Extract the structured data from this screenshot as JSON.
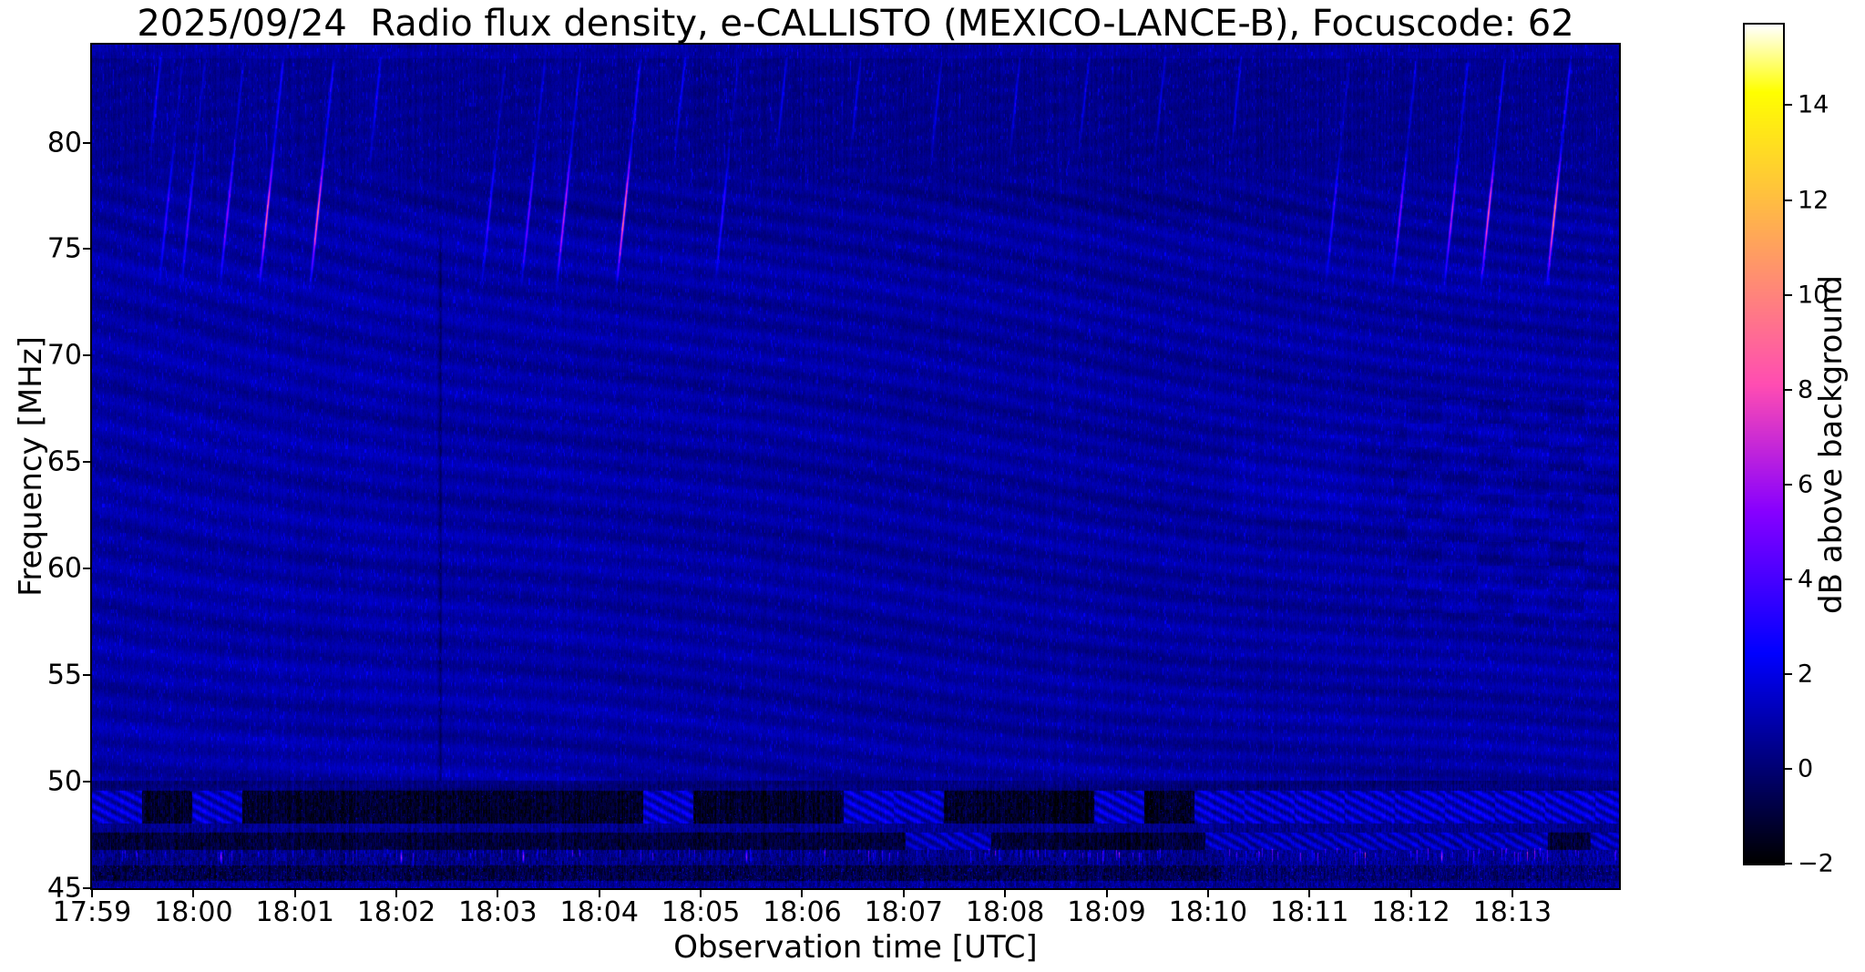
{
  "chart_data": {
    "type": "heatmap",
    "subtype": "solar-radio-spectrogram",
    "title": "2025/09/24  Radio flux density, e-CALLISTO (MEXICO-LANCE-B), Focuscode: 62",
    "x": {
      "label": "Observation time [UTC]",
      "tick_labels": [
        "17:59",
        "18:00",
        "18:01",
        "18:02",
        "18:03",
        "18:04",
        "18:05",
        "18:06",
        "18:07",
        "18:08",
        "18:09",
        "18:10",
        "18:11",
        "18:12",
        "18:13"
      ],
      "range_minutes_from_first_tick": [
        0,
        15.05
      ]
    },
    "y": {
      "label": "Frequency [MHz]",
      "ticks": [
        45,
        50,
        55,
        60,
        65,
        70,
        75,
        80
      ],
      "range": [
        45,
        84.6
      ]
    },
    "colorbar": {
      "label": "dB above background",
      "ticks": [
        -2,
        0,
        2,
        4,
        6,
        8,
        10,
        12,
        14
      ],
      "vmin": -2,
      "vmax": 15.7,
      "colormap": "gnuplot2"
    },
    "background_level_db": 0.8,
    "features": {
      "interference_waves": {
        "freq_range_mhz": [
          50,
          78
        ],
        "amplitude_db": 0.7,
        "description": "slanted wavy interference banding over the whole band"
      },
      "dark_column": {
        "t_min": 3.43,
        "freq_range_mhz": [
          48,
          76
        ]
      },
      "ionosonde_streaks": {
        "freq_range_mhz": [
          76,
          84.3
        ],
        "events": [
          {
            "t_min": 0.45,
            "peak_db": 2.2
          },
          {
            "t_min": 0.67,
            "peak_db": 3.0
          },
          {
            "t_min": 0.89,
            "peak_db": 3.5
          },
          {
            "t_min": 1.27,
            "peak_db": 5.0
          },
          {
            "t_min": 1.66,
            "peak_db": 8.0
          },
          {
            "t_min": 2.16,
            "peak_db": 8.5
          },
          {
            "t_min": 2.62,
            "peak_db": 2.2
          },
          {
            "t_min": 3.85,
            "peak_db": 3.2
          },
          {
            "t_min": 4.24,
            "peak_db": 4.5
          },
          {
            "t_min": 4.59,
            "peak_db": 6.5
          },
          {
            "t_min": 5.18,
            "peak_db": 9.0
          },
          {
            "t_min": 5.62,
            "peak_db": 2.2
          },
          {
            "t_min": 6.15,
            "peak_db": 3.0
          },
          {
            "t_min": 6.62,
            "peak_db": 2.0
          },
          {
            "t_min": 7.35,
            "peak_db": 1.8
          },
          {
            "t_min": 8.15,
            "peak_db": 1.8
          },
          {
            "t_min": 8.92,
            "peak_db": 1.8
          },
          {
            "t_min": 9.6,
            "peak_db": 1.8
          },
          {
            "t_min": 10.35,
            "peak_db": 1.8
          },
          {
            "t_min": 11.1,
            "peak_db": 1.8
          },
          {
            "t_min": 12.17,
            "peak_db": 3.0
          },
          {
            "t_min": 12.83,
            "peak_db": 5.0
          },
          {
            "t_min": 13.34,
            "peak_db": 6.0
          },
          {
            "t_min": 13.7,
            "peak_db": 8.0
          },
          {
            "t_min": 14.35,
            "peak_db": 9.5
          }
        ]
      },
      "rfi_bands": [
        {
          "freq_range_mhz": [
            49.6,
            50.05
          ],
          "level_db": 0.15,
          "character": "dim transition"
        },
        {
          "freq_range_mhz": [
            48.05,
            49.6
          ],
          "level_db": -1.25,
          "character": "dark band, bright hatched patches after ~18:04"
        },
        {
          "freq_range_mhz": [
            47.65,
            48.05
          ],
          "level_db": 0.45,
          "character": "blue gap"
        },
        {
          "freq_range_mhz": [
            46.8,
            47.65
          ],
          "level_db": -0.95,
          "character": "dark band, patches brighten on right"
        },
        {
          "freq_range_mhz": [
            46.1,
            46.8
          ],
          "level_db": 0.3,
          "character": "noisy band with frequent bright bursts"
        },
        {
          "freq_range_mhz": [
            45.35,
            46.1
          ],
          "level_db": -0.75,
          "character": "dark speckled, brighter after ~18:10"
        },
        {
          "freq_range_mhz": [
            45.0,
            45.35
          ],
          "level_db": 0.55,
          "character": "noisy bottom edge"
        }
      ],
      "strong_bursts_t_min": [
        1.27,
        3.04,
        4.25,
        6.45,
        13.3
      ]
    }
  },
  "palette": {
    "figure_bg": "#ffffff",
    "axes_text": "#000000",
    "frame": "#000000"
  }
}
